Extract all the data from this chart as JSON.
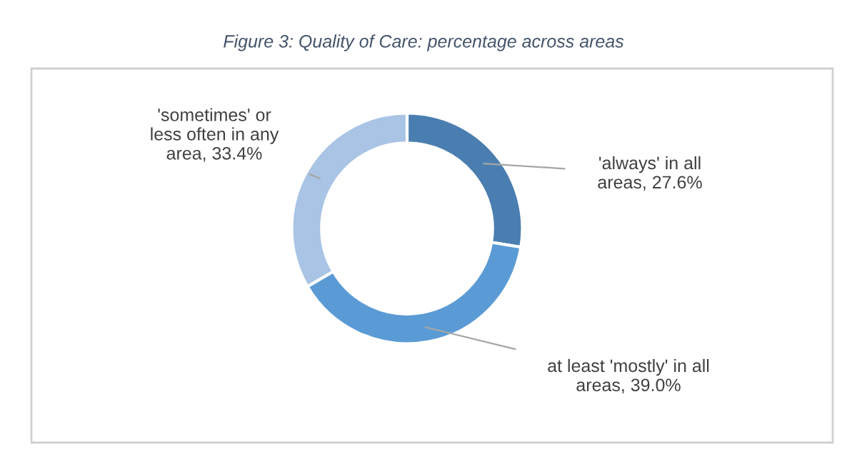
{
  "chart_data": {
    "type": "donut",
    "title": "Figure 3: Quality of Care: percentage across areas",
    "categories": [
      "'always' in all areas",
      "at least 'mostly' in all areas",
      "'sometimes' or less often in any area"
    ],
    "values": [
      27.6,
      39.0,
      33.4
    ],
    "value_labels": [
      "27.6%",
      "39.0%",
      "33.4%"
    ],
    "colors": [
      "#4a7eb0",
      "#5b9bd5",
      "#a9c4e4"
    ],
    "legend": false
  }
}
